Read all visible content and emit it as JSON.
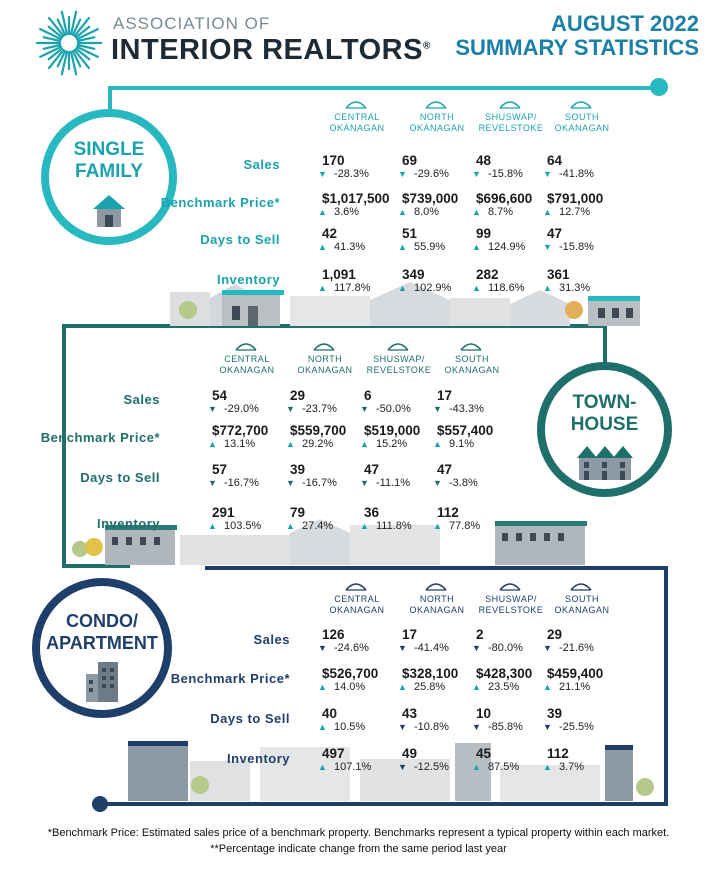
{
  "header": {
    "org_top": "ASSOCIATION OF",
    "org_main": "INTERIOR REALTORS",
    "reg_mark": "®",
    "title_line1": "AUGUST 2022",
    "title_line2": "SUMMARY STATISTICS"
  },
  "colors": {
    "single_family": "#27b8c0",
    "townhouse": "#1f6f6a",
    "condo": "#1f3f6b",
    "up_arrow": "#1aa3ae",
    "down_arrow": "#1f6f6a"
  },
  "sections": [
    {
      "id": "single-family",
      "badge_line1": "SINGLE",
      "badge_line2": "FAMILY",
      "regions": [
        {
          "line1": "CENTRAL",
          "line2": "OKANAGAN"
        },
        {
          "line1": "NORTH",
          "line2": "OKANAGAN"
        },
        {
          "line1": "SHUSWAP/",
          "line2": "REVELSTOKE"
        },
        {
          "line1": "SOUTH",
          "line2": "OKANAGAN"
        }
      ],
      "rows": [
        {
          "label": "Sales",
          "cells": [
            {
              "value": "170",
              "change": "-28.3%",
              "dir": "down"
            },
            {
              "value": "69",
              "change": "-29.6%",
              "dir": "down"
            },
            {
              "value": "48",
              "change": "-15.8%",
              "dir": "down"
            },
            {
              "value": "64",
              "change": "-41.8%",
              "dir": "down"
            }
          ]
        },
        {
          "label": "Benchmark Price*",
          "cells": [
            {
              "value": "$1,017,500",
              "change": "3.6%",
              "dir": "up"
            },
            {
              "value": "$739,000",
              "change": "8.0%",
              "dir": "up"
            },
            {
              "value": "$696,600",
              "change": "8.7%",
              "dir": "up"
            },
            {
              "value": "$791,000",
              "change": "12.7%",
              "dir": "up"
            }
          ]
        },
        {
          "label": "Days to Sell",
          "cells": [
            {
              "value": "42",
              "change": "41.3%",
              "dir": "up"
            },
            {
              "value": "51",
              "change": "55.9%",
              "dir": "up"
            },
            {
              "value": "99",
              "change": "124.9%",
              "dir": "up"
            },
            {
              "value": "47",
              "change": "-15.8%",
              "dir": "down"
            }
          ]
        },
        {
          "label": "Inventory",
          "cells": [
            {
              "value": "1,091",
              "change": "117.8%",
              "dir": "up"
            },
            {
              "value": "349",
              "change": "102.9%",
              "dir": "up"
            },
            {
              "value": "282",
              "change": "118.6%",
              "dir": "up"
            },
            {
              "value": "361",
              "change": "31.3%",
              "dir": "up"
            }
          ]
        }
      ]
    },
    {
      "id": "townhouse",
      "badge_line1": "TOWN-",
      "badge_line2": "HOUSE",
      "regions": [
        {
          "line1": "CENTRAL",
          "line2": "OKANAGAN"
        },
        {
          "line1": "NORTH",
          "line2": "OKANAGAN"
        },
        {
          "line1": "SHUSWAP/",
          "line2": "REVELSTOKE"
        },
        {
          "line1": "SOUTH",
          "line2": "OKANAGAN"
        }
      ],
      "rows": [
        {
          "label": "Sales",
          "cells": [
            {
              "value": "54",
              "change": "-29.0%",
              "dir": "down"
            },
            {
              "value": "29",
              "change": "-23.7%",
              "dir": "down"
            },
            {
              "value": "6",
              "change": "-50.0%",
              "dir": "down"
            },
            {
              "value": "17",
              "change": "-43.3%",
              "dir": "down"
            }
          ]
        },
        {
          "label": "Benchmark Price*",
          "cells": [
            {
              "value": "$772,700",
              "change": "13.1%",
              "dir": "up"
            },
            {
              "value": "$559,700",
              "change": "29.2%",
              "dir": "up"
            },
            {
              "value": "$519,000",
              "change": "15.2%",
              "dir": "up"
            },
            {
              "value": "$557,400",
              "change": "9.1%",
              "dir": "up"
            }
          ]
        },
        {
          "label": "Days to Sell",
          "cells": [
            {
              "value": "57",
              "change": "-16.7%",
              "dir": "down"
            },
            {
              "value": "39",
              "change": "-16.7%",
              "dir": "down"
            },
            {
              "value": "47",
              "change": "-11.1%",
              "dir": "down"
            },
            {
              "value": "47",
              "change": "-3.8%",
              "dir": "down"
            }
          ]
        },
        {
          "label": "Inventory",
          "cells": [
            {
              "value": "291",
              "change": "103.5%",
              "dir": "up"
            },
            {
              "value": "79",
              "change": "27.4%",
              "dir": "up"
            },
            {
              "value": "36",
              "change": "111.8%",
              "dir": "up"
            },
            {
              "value": "112",
              "change": "77.8%",
              "dir": "up"
            }
          ]
        }
      ]
    },
    {
      "id": "condo",
      "badge_line1": "CONDO/",
      "badge_line2": "APARTMENT",
      "regions": [
        {
          "line1": "CENTRAL",
          "line2": "OKANAGAN"
        },
        {
          "line1": "NORTH",
          "line2": "OKANAGAN"
        },
        {
          "line1": "SHUSWAP/",
          "line2": "REVELSTOKE"
        },
        {
          "line1": "SOUTH",
          "line2": "OKANAGAN"
        }
      ],
      "rows": [
        {
          "label": "Sales",
          "cells": [
            {
              "value": "126",
              "change": "-24.6%",
              "dir": "down"
            },
            {
              "value": "17",
              "change": "-41.4%",
              "dir": "down"
            },
            {
              "value": "2",
              "change": "-80.0%",
              "dir": "down"
            },
            {
              "value": "29",
              "change": "-21.6%",
              "dir": "down"
            }
          ]
        },
        {
          "label": "Benchmark Price*",
          "cells": [
            {
              "value": "$526,700",
              "change": "14.0%",
              "dir": "up"
            },
            {
              "value": "$328,100",
              "change": "25.8%",
              "dir": "up"
            },
            {
              "value": "$428,300",
              "change": "23.5%",
              "dir": "up"
            },
            {
              "value": "$459,400",
              "change": "21.1%",
              "dir": "up"
            }
          ]
        },
        {
          "label": "Days to Sell",
          "cells": [
            {
              "value": "40",
              "change": "10.5%",
              "dir": "up"
            },
            {
              "value": "43",
              "change": "-10.8%",
              "dir": "down"
            },
            {
              "value": "10",
              "change": "-85.8%",
              "dir": "down"
            },
            {
              "value": "39",
              "change": "-25.5%",
              "dir": "down"
            }
          ]
        },
        {
          "label": "Inventory",
          "cells": [
            {
              "value": "497",
              "change": "107.1%",
              "dir": "up"
            },
            {
              "value": "49",
              "change": "-12.5%",
              "dir": "down"
            },
            {
              "value": "45",
              "change": "87.5%",
              "dir": "up"
            },
            {
              "value": "112",
              "change": "3.7%",
              "dir": "up"
            }
          ]
        }
      ]
    }
  ],
  "footer": {
    "line1": "*Benchmark Price: Estimated sales price of a benchmark property. Benchmarks represent a typical property within each market.",
    "line2": "**Percentage indicate change from the same period last year"
  }
}
